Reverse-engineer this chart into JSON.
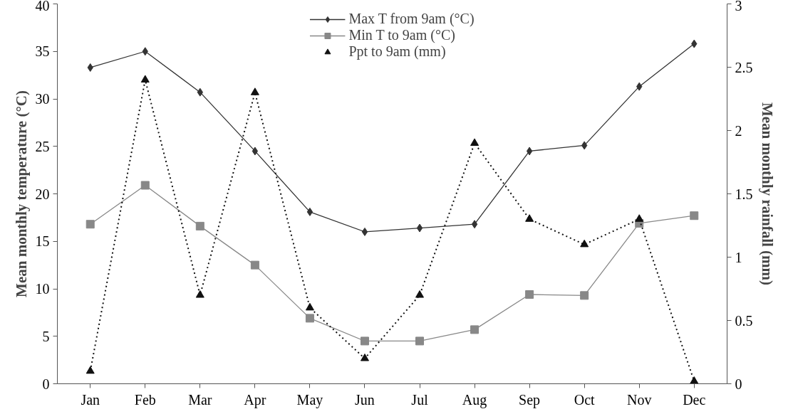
{
  "chart_data": {
    "type": "line",
    "xlabel": null,
    "ylabel": "Mean monthly temperature (°C)",
    "y2label": "Mean monthly rainfall (mm)",
    "categories": [
      "Jan",
      "Feb",
      "Mar",
      "Apr",
      "May",
      "Jun",
      "Jul",
      "Aug",
      "Sep",
      "Oct",
      "Nov",
      "Dec"
    ],
    "ylim": [
      0,
      40
    ],
    "yticks": [
      0,
      5,
      10,
      15,
      20,
      25,
      30,
      35,
      40
    ],
    "y2lim": [
      0,
      3
    ],
    "y2ticks": [
      0,
      {
        "value": 0.5,
        "label": "0.5"
      },
      1,
      {
        "value": 1.5,
        "label": "1.5"
      },
      2,
      {
        "value": 2.5,
        "label": "2.5"
      },
      3
    ],
    "grid": false,
    "legend": "top",
    "series": [
      {
        "name": "Max T from 9am (°C)",
        "color": "#333333",
        "marker": "diamond",
        "line_style": "solid",
        "values": [
          33.3,
          35.0,
          30.7,
          24.5,
          18.1,
          16.0,
          16.4,
          16.8,
          24.5,
          25.1,
          31.3,
          35.8
        ]
      },
      {
        "name": "Min T to 9am (°C)",
        "color": "#888888",
        "marker": "square",
        "line_style": "solid",
        "values": [
          16.8,
          20.9,
          16.6,
          12.5,
          6.9,
          4.5,
          4.5,
          5.7,
          9.4,
          9.3,
          16.9,
          17.7
        ]
      },
      {
        "name": "Ppt to 9am (mm)",
        "color": "#111111",
        "marker": "triangle",
        "line_style": "dotted",
        "axis": "y2",
        "values": [
          0.1,
          2.4,
          0.7,
          2.3,
          0.6,
          0.2,
          0.7,
          1.9,
          1.3,
          1.1,
          1.3,
          0.02
        ]
      }
    ]
  }
}
